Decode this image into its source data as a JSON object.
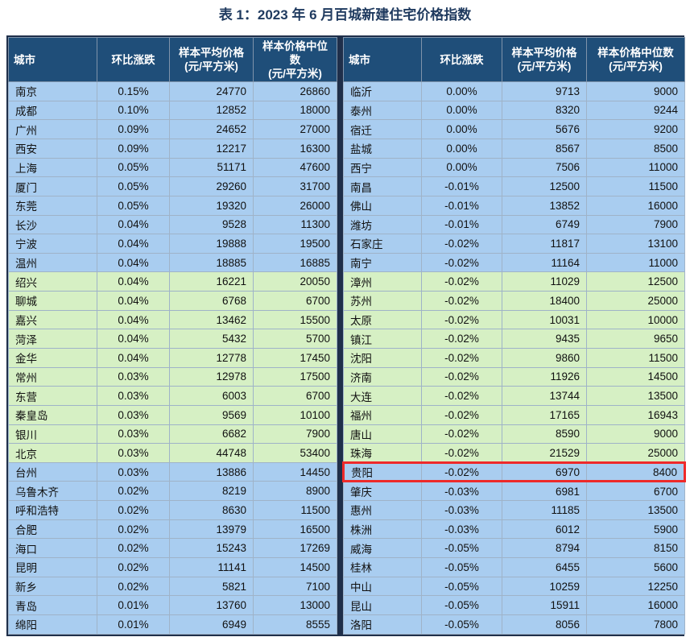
{
  "title": "表 1：2023 年 6 月百城新建住宅价格指数",
  "tables": [
    {
      "header": [
        "城市",
        "环比涨跌",
        "样本平均价格\n(元/平方米)",
        "样本价格中位数\n(元/平方米)"
      ],
      "rows": [
        [
          "南京",
          "0.15%",
          "24770",
          "26860"
        ],
        [
          "成都",
          "0.10%",
          "12852",
          "18000"
        ],
        [
          "广州",
          "0.09%",
          "24652",
          "27000"
        ],
        [
          "西安",
          "0.09%",
          "12217",
          "16300"
        ],
        [
          "上海",
          "0.05%",
          "51171",
          "47600"
        ],
        [
          "厦门",
          "0.05%",
          "29260",
          "31700"
        ],
        [
          "东莞",
          "0.05%",
          "19320",
          "26000"
        ],
        [
          "长沙",
          "0.04%",
          "9528",
          "11300"
        ],
        [
          "宁波",
          "0.04%",
          "19888",
          "19500"
        ],
        [
          "温州",
          "0.04%",
          "18885",
          "16885"
        ],
        [
          "绍兴",
          "0.04%",
          "16221",
          "20050"
        ],
        [
          "聊城",
          "0.04%",
          "6768",
          "6700"
        ],
        [
          "嘉兴",
          "0.04%",
          "13462",
          "15500"
        ],
        [
          "菏泽",
          "0.04%",
          "5432",
          "5700"
        ],
        [
          "金华",
          "0.04%",
          "12778",
          "17450"
        ],
        [
          "常州",
          "0.03%",
          "12978",
          "17500"
        ],
        [
          "东营",
          "0.03%",
          "6003",
          "6700"
        ],
        [
          "秦皇岛",
          "0.03%",
          "9569",
          "10100"
        ],
        [
          "银川",
          "0.03%",
          "6682",
          "7900"
        ],
        [
          "北京",
          "0.03%",
          "44748",
          "53400"
        ],
        [
          "台州",
          "0.03%",
          "13886",
          "14450"
        ],
        [
          "乌鲁木齐",
          "0.02%",
          "8219",
          "8900"
        ],
        [
          "呼和浩特",
          "0.02%",
          "8630",
          "11500"
        ],
        [
          "合肥",
          "0.02%",
          "13979",
          "16500"
        ],
        [
          "海口",
          "0.02%",
          "15243",
          "17269"
        ],
        [
          "昆明",
          "0.02%",
          "11141",
          "14500"
        ],
        [
          "新乡",
          "0.02%",
          "5821",
          "7100"
        ],
        [
          "青岛",
          "0.01%",
          "13760",
          "13000"
        ],
        [
          "绵阳",
          "0.01%",
          "6949",
          "8555"
        ]
      ]
    },
    {
      "header": [
        "城市",
        "环比涨跌",
        "样本平均价格\n(元/平方米)",
        "样本价格中位数\n(元/平方米)"
      ],
      "rows": [
        [
          "临沂",
          "0.00%",
          "9713",
          "9000"
        ],
        [
          "泰州",
          "0.00%",
          "8320",
          "9244"
        ],
        [
          "宿迁",
          "0.00%",
          "5676",
          "9200"
        ],
        [
          "盐城",
          "0.00%",
          "8567",
          "8500"
        ],
        [
          "西宁",
          "0.00%",
          "7506",
          "11000"
        ],
        [
          "南昌",
          "-0.01%",
          "12500",
          "11500"
        ],
        [
          "佛山",
          "-0.01%",
          "13852",
          "16000"
        ],
        [
          "潍坊",
          "-0.01%",
          "6749",
          "7900"
        ],
        [
          "石家庄",
          "-0.02%",
          "11817",
          "13100"
        ],
        [
          "南宁",
          "-0.02%",
          "11164",
          "11000"
        ],
        [
          "漳州",
          "-0.02%",
          "11029",
          "12500"
        ],
        [
          "苏州",
          "-0.02%",
          "18400",
          "25000"
        ],
        [
          "太原",
          "-0.02%",
          "10031",
          "10000"
        ],
        [
          "镇江",
          "-0.02%",
          "9435",
          "9650"
        ],
        [
          "沈阳",
          "-0.02%",
          "9860",
          "11500"
        ],
        [
          "济南",
          "-0.02%",
          "11926",
          "14500"
        ],
        [
          "大连",
          "-0.02%",
          "13744",
          "13500"
        ],
        [
          "福州",
          "-0.02%",
          "17165",
          "16943"
        ],
        [
          "唐山",
          "-0.02%",
          "8590",
          "9000"
        ],
        [
          "珠海",
          "-0.02%",
          "21529",
          "25000"
        ],
        [
          "贵阳",
          "-0.02%",
          "6970",
          "8400"
        ],
        [
          "肇庆",
          "-0.03%",
          "6981",
          "6700"
        ],
        [
          "惠州",
          "-0.03%",
          "11185",
          "13500"
        ],
        [
          "株洲",
          "-0.03%",
          "6012",
          "5900"
        ],
        [
          "威海",
          "-0.05%",
          "8794",
          "8150"
        ],
        [
          "桂林",
          "-0.05%",
          "6455",
          "5600"
        ],
        [
          "中山",
          "-0.05%",
          "10259",
          "12250"
        ],
        [
          "昆山",
          "-0.05%",
          "15911",
          "16000"
        ],
        [
          "洛阳",
          "-0.05%",
          "8056",
          "7800"
        ]
      ]
    }
  ]
}
